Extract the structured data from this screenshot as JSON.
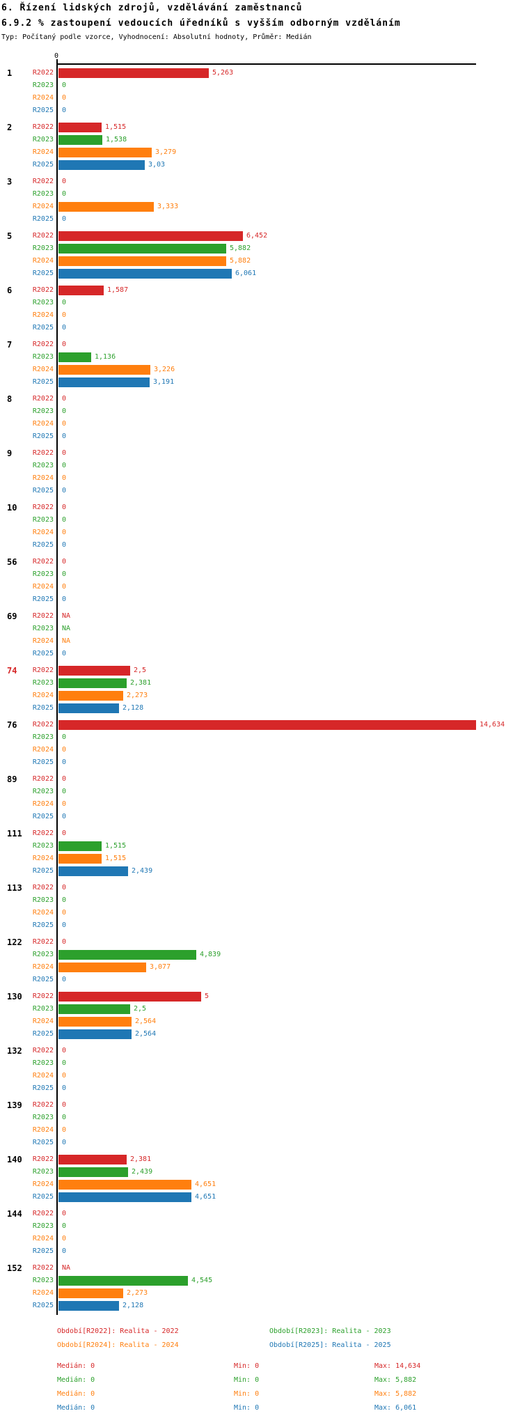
{
  "page": {
    "title": "6. Řízení lidských zdrojů, vzdělávání zaměstnanců",
    "subtitle": "6.9.2 % zastoupení vedoucích úředníků s vyšším odborným vzděláním",
    "meta": "Typ: Počítaný podle vzorce, Vyhodnocení: Absolutní hodnoty, Průměr: Medián"
  },
  "colors": {
    "r2022": "#d62728",
    "r2023": "#2ca02c",
    "r2024": "#ff7f0e",
    "r2025": "#1f77b4",
    "axis": "#000000",
    "highlight_id": "#d62728"
  },
  "axis": {
    "zero_label": "0",
    "x_min": 0,
    "x_max": 14.634
  },
  "chart_data": {
    "type": "bar",
    "orientation": "horizontal",
    "title": "6.9.2 % zastoupení vedoucích úředníků s vyšším odborným vzděláním",
    "value_format": "czech decimal comma",
    "series_names": [
      "R2022",
      "R2023",
      "R2024",
      "R2025"
    ],
    "series_colors": [
      "#d62728",
      "#2ca02c",
      "#ff7f0e",
      "#1f77b4"
    ],
    "xlim": [
      0,
      14.634
    ],
    "grid": false,
    "groups": [
      {
        "id": "1",
        "highlight": false,
        "values": [
          "5,263",
          "0",
          "0",
          "0"
        ],
        "numeric": [
          5.263,
          0,
          0,
          0
        ]
      },
      {
        "id": "2",
        "highlight": false,
        "values": [
          "1,515",
          "1,538",
          "3,279",
          "3,03"
        ],
        "numeric": [
          1.515,
          1.538,
          3.279,
          3.03
        ]
      },
      {
        "id": "3",
        "highlight": false,
        "values": [
          "0",
          "0",
          "3,333",
          "0"
        ],
        "numeric": [
          0,
          0,
          3.333,
          0
        ]
      },
      {
        "id": "5",
        "highlight": false,
        "values": [
          "6,452",
          "5,882",
          "5,882",
          "6,061"
        ],
        "numeric": [
          6.452,
          5.882,
          5.882,
          6.061
        ]
      },
      {
        "id": "6",
        "highlight": false,
        "values": [
          "1,587",
          "0",
          "0",
          "0"
        ],
        "numeric": [
          1.587,
          0,
          0,
          0
        ]
      },
      {
        "id": "7",
        "highlight": false,
        "values": [
          "0",
          "1,136",
          "3,226",
          "3,191"
        ],
        "numeric": [
          0,
          1.136,
          3.226,
          3.191
        ]
      },
      {
        "id": "8",
        "highlight": false,
        "values": [
          "0",
          "0",
          "0",
          "0"
        ],
        "numeric": [
          0,
          0,
          0,
          0
        ]
      },
      {
        "id": "9",
        "highlight": false,
        "values": [
          "0",
          "0",
          "0",
          "0"
        ],
        "numeric": [
          0,
          0,
          0,
          0
        ]
      },
      {
        "id": "10",
        "highlight": false,
        "values": [
          "0",
          "0",
          "0",
          "0"
        ],
        "numeric": [
          0,
          0,
          0,
          0
        ]
      },
      {
        "id": "56",
        "highlight": false,
        "values": [
          "0",
          "0",
          "0",
          "0"
        ],
        "numeric": [
          0,
          0,
          0,
          0
        ]
      },
      {
        "id": "69",
        "highlight": false,
        "values": [
          "NA",
          "NA",
          "NA",
          "0"
        ],
        "numeric": [
          null,
          null,
          null,
          0
        ]
      },
      {
        "id": "74",
        "highlight": true,
        "values": [
          "2,5",
          "2,381",
          "2,273",
          "2,128"
        ],
        "numeric": [
          2.5,
          2.381,
          2.273,
          2.128
        ]
      },
      {
        "id": "76",
        "highlight": false,
        "values": [
          "14,634",
          "0",
          "0",
          "0"
        ],
        "numeric": [
          14.634,
          0,
          0,
          0
        ]
      },
      {
        "id": "89",
        "highlight": false,
        "values": [
          "0",
          "0",
          "0",
          "0"
        ],
        "numeric": [
          0,
          0,
          0,
          0
        ]
      },
      {
        "id": "111",
        "highlight": false,
        "values": [
          "0",
          "1,515",
          "1,515",
          "2,439"
        ],
        "numeric": [
          0,
          1.515,
          1.515,
          2.439
        ]
      },
      {
        "id": "113",
        "highlight": false,
        "values": [
          "0",
          "0",
          "0",
          "0"
        ],
        "numeric": [
          0,
          0,
          0,
          0
        ]
      },
      {
        "id": "122",
        "highlight": false,
        "values": [
          "0",
          "4,839",
          "3,077",
          "0"
        ],
        "numeric": [
          0,
          4.839,
          3.077,
          0
        ]
      },
      {
        "id": "130",
        "highlight": false,
        "values": [
          "5",
          "2,5",
          "2,564",
          "2,564"
        ],
        "numeric": [
          5,
          2.5,
          2.564,
          2.564
        ]
      },
      {
        "id": "132",
        "highlight": false,
        "values": [
          "0",
          "0",
          "0",
          "0"
        ],
        "numeric": [
          0,
          0,
          0,
          0
        ]
      },
      {
        "id": "139",
        "highlight": false,
        "values": [
          "0",
          "0",
          "0",
          "0"
        ],
        "numeric": [
          0,
          0,
          0,
          0
        ]
      },
      {
        "id": "140",
        "highlight": false,
        "values": [
          "2,381",
          "2,439",
          "4,651",
          "4,651"
        ],
        "numeric": [
          2.381,
          2.439,
          4.651,
          4.651
        ]
      },
      {
        "id": "144",
        "highlight": false,
        "values": [
          "0",
          "0",
          "0",
          "0"
        ],
        "numeric": [
          0,
          0,
          0,
          0
        ]
      },
      {
        "id": "152",
        "highlight": false,
        "values": [
          "NA",
          "4,545",
          "2,273",
          "2,128"
        ],
        "numeric": [
          null,
          4.545,
          2.273,
          2.128
        ]
      }
    ]
  },
  "legend": {
    "items": [
      {
        "label": "Období[R2022]: Realita - 2022",
        "color": "#d62728",
        "row": 0,
        "col": 0
      },
      {
        "label": "Období[R2023]: Realita - 2023",
        "color": "#2ca02c",
        "row": 0,
        "col": 1
      },
      {
        "label": "Období[R2024]: Realita - 2024",
        "color": "#ff7f0e",
        "row": 1,
        "col": 0
      },
      {
        "label": "Období[R2025]: Realita - 2025",
        "color": "#1f77b4",
        "row": 1,
        "col": 1
      }
    ]
  },
  "stats": {
    "rows": [
      {
        "color": "#d62728",
        "median": "Medián: 0",
        "min": "Min: 0",
        "max": "Max: 14,634"
      },
      {
        "color": "#2ca02c",
        "median": "Medián: 0",
        "min": "Min: 0",
        "max": "Max: 5,882"
      },
      {
        "color": "#ff7f0e",
        "median": "Medián: 0",
        "min": "Min: 0",
        "max": "Max: 5,882"
      },
      {
        "color": "#1f77b4",
        "median": "Medián: 0",
        "min": "Min: 0",
        "max": "Max: 6,061"
      }
    ]
  }
}
